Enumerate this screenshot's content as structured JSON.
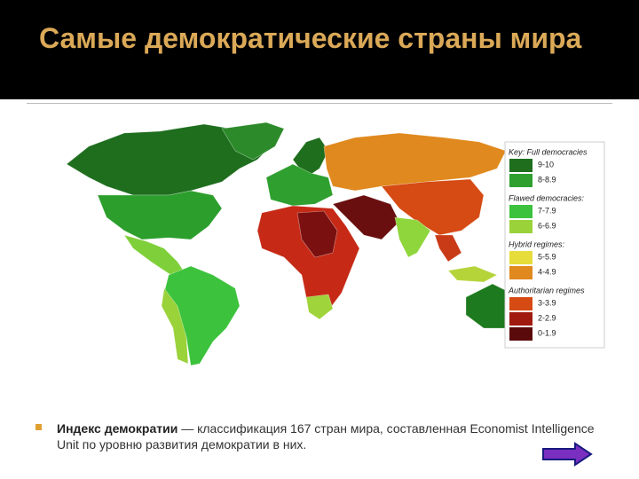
{
  "header": {
    "title": "Самые демократические страны мира"
  },
  "map": {
    "key": [
      {
        "heading": "Key: Full democracies",
        "items": [
          {
            "label": "9-10",
            "color": "#1e6e1e"
          },
          {
            "label": "8-8.9",
            "color": "#2fa02f"
          }
        ]
      },
      {
        "heading": "Flawed democracies:",
        "items": [
          {
            "label": "7-7.9",
            "color": "#3cc23c"
          },
          {
            "label": "6-6.9",
            "color": "#9ad23a"
          }
        ]
      },
      {
        "heading": "Hybrid regimes:",
        "items": [
          {
            "label": "5-5.9",
            "color": "#e6dc3a"
          },
          {
            "label": "4-4.9",
            "color": "#e0891e"
          }
        ]
      },
      {
        "heading": "Authoritarian regimes",
        "items": [
          {
            "label": "3-3.9",
            "color": "#d64a14"
          },
          {
            "label": "2-2.9",
            "color": "#a01a10"
          },
          {
            "label": "0-1.9",
            "color": "#5a0a0a"
          }
        ]
      }
    ]
  },
  "caption": {
    "term": "Индекс демократии",
    "text": "— классификация 167 стран мира, составленная Economist Intelligence Unit по уровню развития демократии в них."
  }
}
